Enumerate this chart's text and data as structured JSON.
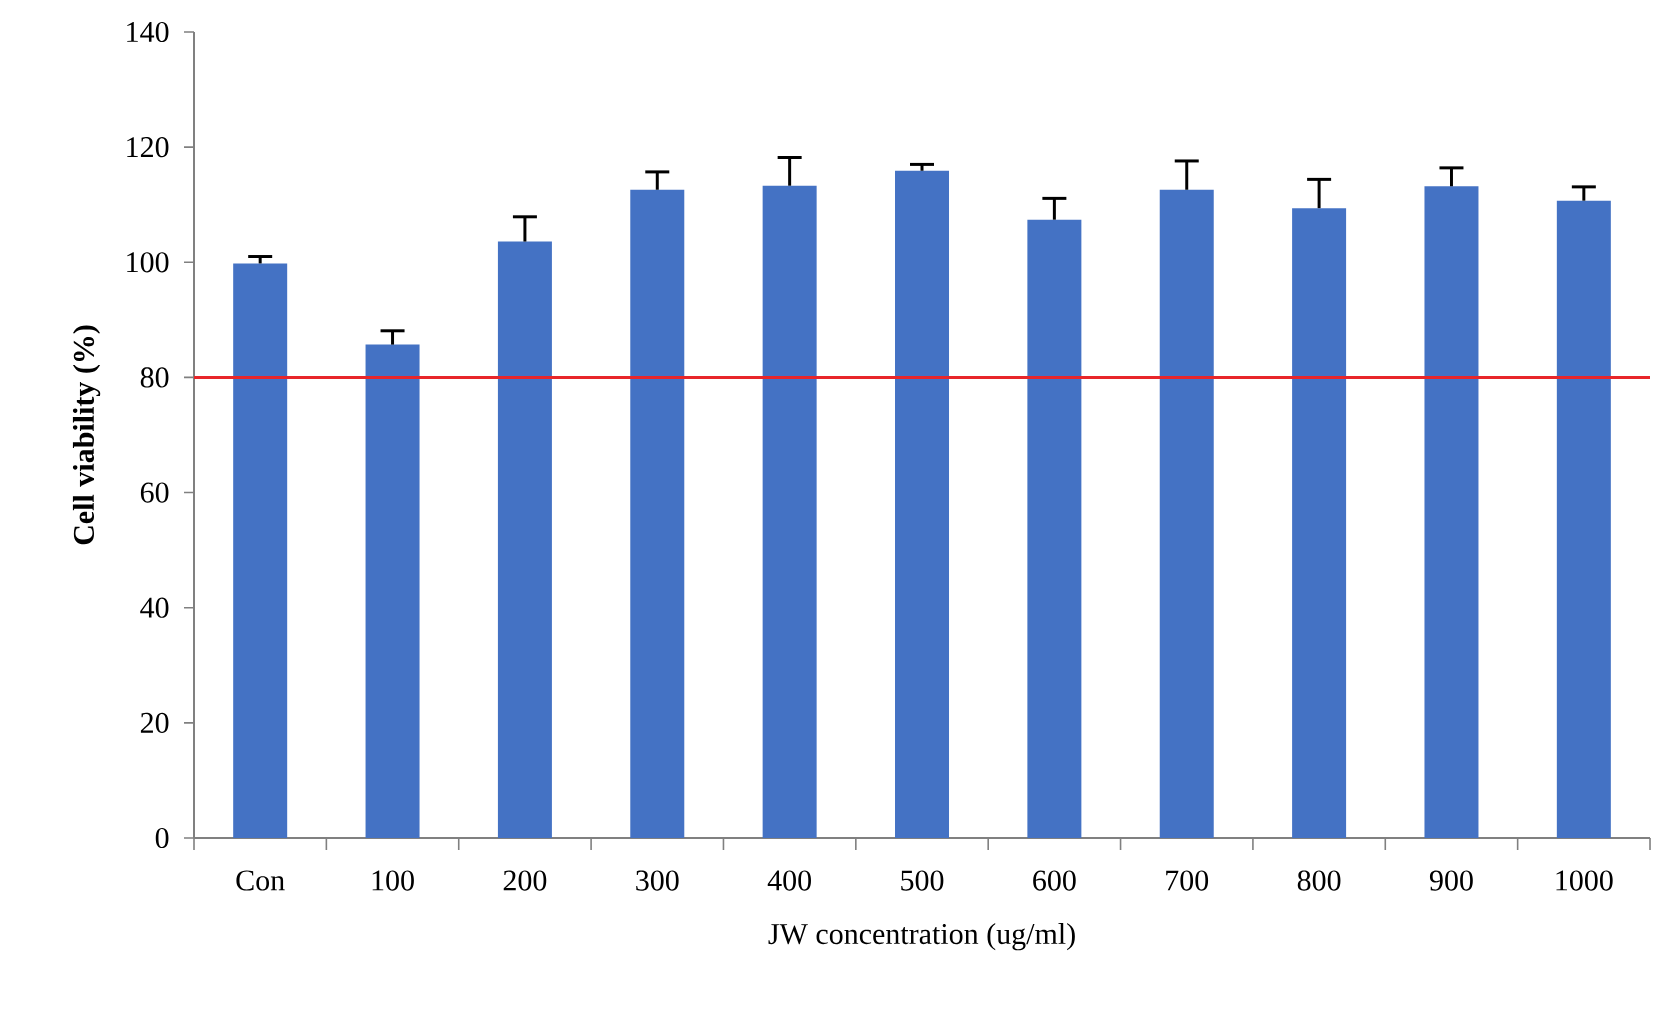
{
  "chart_data": {
    "type": "bar",
    "xlabel": "JW concentration (ug/ml)",
    "ylabel": "Cell viability (%)",
    "categories": [
      "Con",
      "100",
      "200",
      "300",
      "400",
      "500",
      "600",
      "700",
      "800",
      "900",
      "1000"
    ],
    "values": [
      99.8,
      85.7,
      103.6,
      112.6,
      113.3,
      115.9,
      107.4,
      112.6,
      109.4,
      113.2,
      110.7
    ],
    "errors": [
      1.2,
      2.4,
      4.3,
      3.1,
      4.9,
      1.1,
      3.7,
      5.0,
      5.0,
      3.2,
      2.4
    ],
    "color": "#4472c4",
    "ylim": [
      0,
      140
    ],
    "yticks": [
      0,
      20,
      40,
      60,
      80,
      100,
      120,
      140
    ],
    "ref_lines": [
      {
        "axis": "y",
        "value": 80,
        "color": "#e8262a"
      }
    ]
  }
}
